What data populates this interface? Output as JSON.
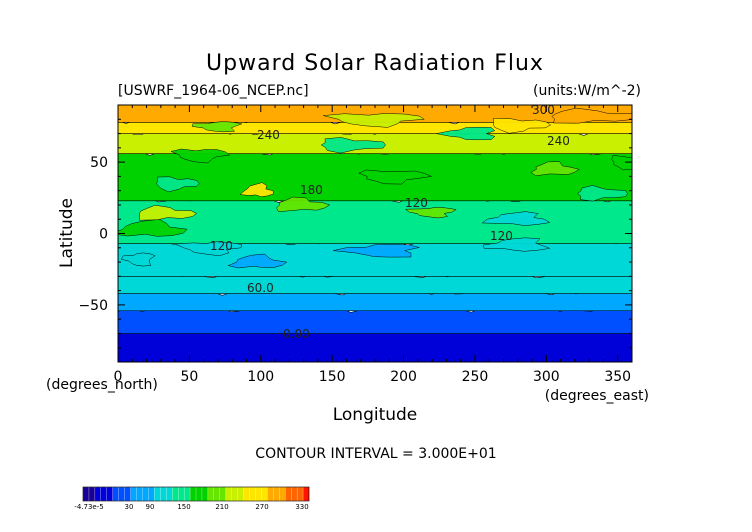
{
  "chart_data": {
    "type": "heatmap",
    "title": "Upward Solar Radiation Flux",
    "file_label": "[USWRF_1964-06_NCEP.nc]",
    "units_label": "(units:W/m^-2)",
    "xlabel": "Longitude",
    "ylabel": "Latitude",
    "x_unit_label": "(degrees_east)",
    "y_unit_label": "(degrees_north)",
    "xlim": [
      0,
      360
    ],
    "ylim": [
      -90,
      90
    ],
    "x_ticks": [
      "0",
      "50",
      "100",
      "150",
      "200",
      "250",
      "300",
      "350"
    ],
    "y_ticks": [
      "50",
      "0",
      "−50"
    ],
    "contour_interval_text": "CONTOUR INTERVAL = 3.000E+01",
    "contour_labels": [
      "300",
      "240",
      "240",
      "180",
      "120",
      "120",
      "120",
      "60.0",
      "0.00"
    ],
    "colorbar": {
      "tick_labels": [
        "-4.73e-5",
        "30",
        "90",
        "150",
        "210",
        "270",
        "330"
      ],
      "colors": [
        "#1a0096",
        "#0000d8",
        "#0050ff",
        "#00a8ff",
        "#00d8d8",
        "#00e88c",
        "#00d200",
        "#64e600",
        "#c8f000",
        "#ffe600",
        "#ffaa00",
        "#ff6400",
        "#ff1400",
        "#c80000"
      ]
    },
    "bands": [
      {
        "lat": [
          -90,
          -68
        ],
        "value": 0
      },
      {
        "lat": [
          -68,
          -52
        ],
        "value": 30
      },
      {
        "lat": [
          -52,
          -40
        ],
        "value": 60
      },
      {
        "lat": [
          -40,
          -28
        ],
        "value": 90
      },
      {
        "lat": [
          -28,
          -5
        ],
        "value": 105
      },
      {
        "lat": [
          -5,
          25
        ],
        "value": 130
      },
      {
        "lat": [
          25,
          58
        ],
        "value": 165
      },
      {
        "lat": [
          58,
          72
        ],
        "value": 215
      },
      {
        "lat": [
          72,
          80
        ],
        "value": 255
      },
      {
        "lat": [
          80,
          90
        ],
        "value": 285
      }
    ],
    "grid": false
  }
}
